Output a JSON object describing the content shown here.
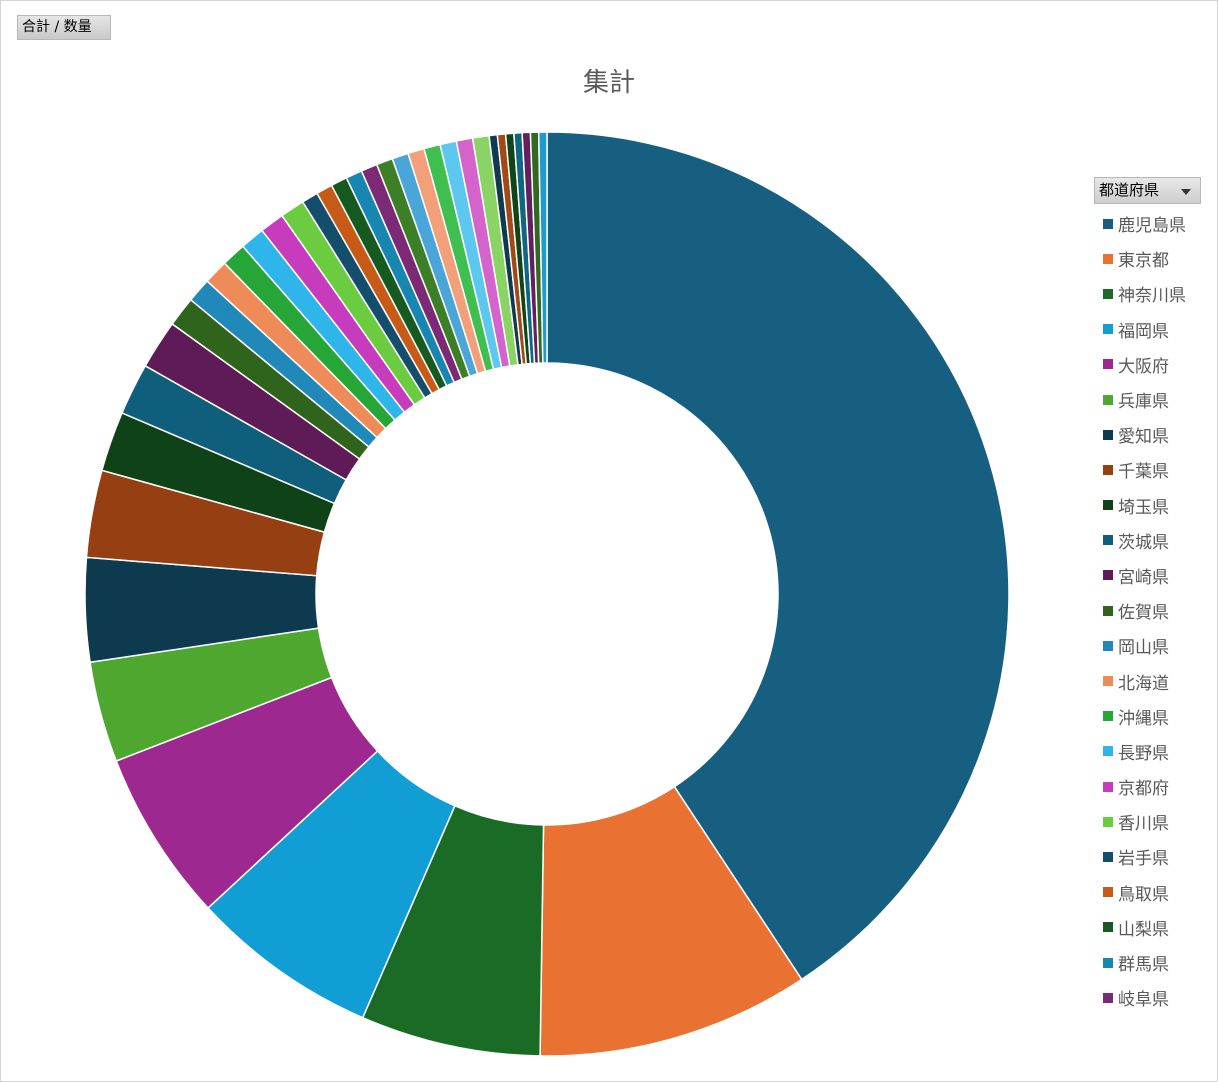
{
  "field_button": {
    "label": "合計 / 数量"
  },
  "legend_filter": {
    "label": "都道府県"
  },
  "chart_data": {
    "type": "pie",
    "style": "doughnut",
    "title": "集計",
    "legend_position": "right",
    "slices": [
      {
        "label": "鹿児島県",
        "value": 42.7,
        "color": "#175f81"
      },
      {
        "label": "東京都",
        "value": 10.0,
        "color": "#e97132"
      },
      {
        "label": "神奈川県",
        "value": 6.6,
        "color": "#1a6b25"
      },
      {
        "label": "福岡県",
        "value": 6.9,
        "color": "#119ed5"
      },
      {
        "label": "大阪府",
        "value": 6.3,
        "color": "#9d288f"
      },
      {
        "label": "兵庫県",
        "value": 3.7,
        "color": "#4ea72f"
      },
      {
        "label": "愛知県",
        "value": 3.8,
        "color": "#0e3a50"
      },
      {
        "label": "千葉県",
        "value": 3.2,
        "color": "#953f12"
      },
      {
        "label": "埼玉県",
        "value": 2.2,
        "color": "#104217"
      },
      {
        "label": "茨城県",
        "value": 1.9,
        "color": "#0e5e7c"
      },
      {
        "label": "宮崎県",
        "value": 1.8,
        "color": "#5f1b58"
      },
      {
        "label": "佐賀県",
        "value": 1.1,
        "color": "#2f641d"
      },
      {
        "label": "岡山県",
        "value": 0.9,
        "color": "#2189b9"
      },
      {
        "label": "北海道",
        "value": 0.9,
        "color": "#ef8b58"
      },
      {
        "label": "沖縄県",
        "value": 0.9,
        "color": "#26a637"
      },
      {
        "label": "長野県",
        "value": 0.9,
        "color": "#2eb5ea"
      },
      {
        "label": "京都府",
        "value": 0.9,
        "color": "#c63cbc"
      },
      {
        "label": "香川県",
        "value": 0.9,
        "color": "#6ccc40"
      },
      {
        "label": "岩手県",
        "value": 0.6,
        "color": "#154e6d"
      },
      {
        "label": "鳥取県",
        "value": 0.6,
        "color": "#c85a18"
      },
      {
        "label": "山梨県",
        "value": 0.6,
        "color": "#175a20"
      },
      {
        "label": "群馬県",
        "value": 0.6,
        "color": "#1786b0"
      },
      {
        "label": "岐阜県",
        "value": 0.6,
        "color": "#7d2a76"
      },
      {
        "label": "",
        "value": 0.6,
        "color": "#3d7f26"
      },
      {
        "label": "",
        "value": 0.6,
        "color": "#4aa5d9"
      },
      {
        "label": "",
        "value": 0.6,
        "color": "#f2a07a"
      },
      {
        "label": "",
        "value": 0.6,
        "color": "#3fbf50"
      },
      {
        "label": "",
        "value": 0.6,
        "color": "#5cc8f0"
      },
      {
        "label": "",
        "value": 0.6,
        "color": "#d563cc"
      },
      {
        "label": "",
        "value": 0.6,
        "color": "#8ad465"
      },
      {
        "label": "",
        "value": 0.3,
        "color": "#0f3a50"
      },
      {
        "label": "",
        "value": 0.3,
        "color": "#a04a18"
      },
      {
        "label": "",
        "value": 0.3,
        "color": "#0f4518"
      },
      {
        "label": "",
        "value": 0.3,
        "color": "#106784"
      },
      {
        "label": "",
        "value": 0.3,
        "color": "#631f5e"
      },
      {
        "label": "",
        "value": 0.3,
        "color": "#2f6a1f"
      },
      {
        "label": "",
        "value": 0.3,
        "color": "#1c9ad2"
      }
    ]
  }
}
